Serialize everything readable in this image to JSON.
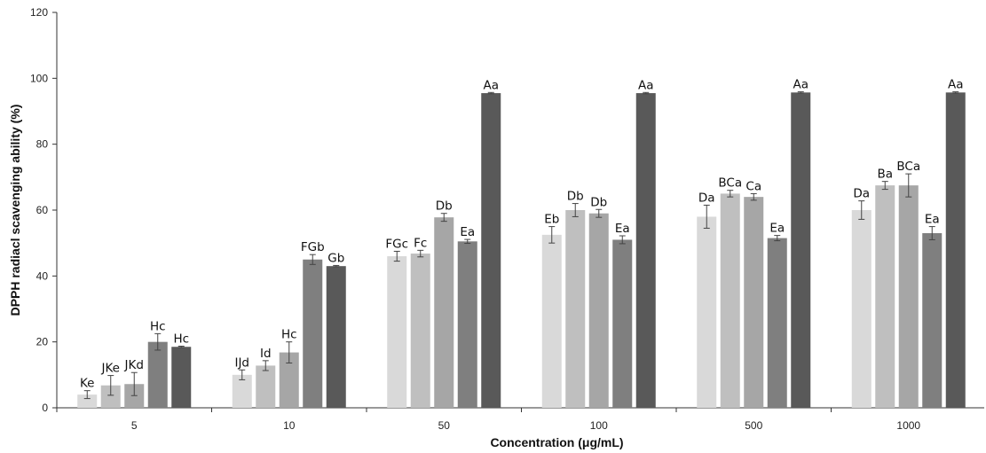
{
  "chart_data": {
    "type": "bar",
    "title": "",
    "xlabel": "Concentration (μg/mL)",
    "ylabel": "DPPH radiacl  scavenging ability (%)",
    "ylim": [
      0,
      120
    ],
    "yticks": [
      "0",
      "20",
      "40",
      "60",
      "80",
      "100",
      "120"
    ],
    "grid": false,
    "legend": "none",
    "categories": [
      "5",
      "10",
      "50",
      "100",
      "500",
      "1000"
    ],
    "colors": [
      "#d9d9d9",
      "#bfbfbf",
      "#a6a6a6",
      "#7f7f7f",
      "#595959"
    ],
    "series": [
      {
        "values": [
          4.0,
          10.0,
          46.0,
          52.5,
          58.0,
          60.0
        ],
        "errors": [
          1.2,
          1.5,
          1.5,
          2.5,
          3.5,
          2.8
        ],
        "labels": [
          "Ke",
          "IJd",
          "FGc",
          "Eb",
          "Da",
          "Da"
        ]
      },
      {
        "values": [
          6.8,
          12.8,
          46.8,
          60.0,
          65.0,
          67.5
        ],
        "errors": [
          3.0,
          1.5,
          1.0,
          2.0,
          1.0,
          1.2
        ],
        "labels": [
          "JKe",
          "Id",
          "Fc",
          "Db",
          "BCa",
          "Ba"
        ]
      },
      {
        "values": [
          7.2,
          16.8,
          57.8,
          59.0,
          64.0,
          67.5
        ],
        "errors": [
          3.5,
          3.2,
          1.2,
          1.2,
          1.0,
          3.5
        ],
        "labels": [
          "JKd",
          "Hc",
          "Db",
          "Db",
          "Ca",
          "BCa"
        ]
      },
      {
        "values": [
          20.0,
          45.0,
          50.5,
          51.0,
          51.5,
          53.0
        ],
        "errors": [
          2.5,
          1.5,
          0.6,
          1.2,
          0.8,
          2.0
        ],
        "labels": [
          "Hc",
          "FGb",
          "Ea",
          "Ea",
          "Ea",
          "Ea"
        ]
      },
      {
        "values": [
          18.5,
          43.0,
          95.5,
          95.5,
          95.7,
          95.7
        ],
        "errors": [
          0.2,
          0.2,
          0.2,
          0.2,
          0.2,
          0.2
        ],
        "labels": [
          "Hc",
          "Gb",
          "Aa",
          "Aa",
          "Aa",
          "Aa"
        ]
      }
    ]
  }
}
